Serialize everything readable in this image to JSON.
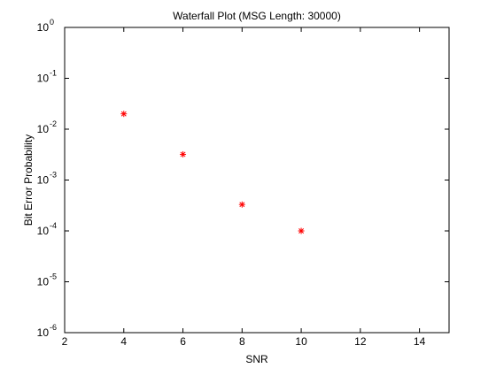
{
  "chart_data": {
    "type": "scatter",
    "title": "Waterfall Plot (MSG Length: 30000)",
    "xlabel": "SNR",
    "ylabel": "Bit Error Probability",
    "xlim": [
      2,
      15
    ],
    "ylim": [
      1e-06,
      1
    ],
    "yscale": "log",
    "grid": false,
    "x_ticks": [
      2,
      4,
      6,
      8,
      10,
      12,
      14
    ],
    "y_ticks": [
      {
        "value": 1e-06,
        "base": "10",
        "exp": "-6"
      },
      {
        "value": 1e-05,
        "base": "10",
        "exp": "-5"
      },
      {
        "value": 0.0001,
        "base": "10",
        "exp": "-4"
      },
      {
        "value": 0.001,
        "base": "10",
        "exp": "-3"
      },
      {
        "value": 0.01,
        "base": "10",
        "exp": "-2"
      },
      {
        "value": 0.1,
        "base": "10",
        "exp": "-1"
      },
      {
        "value": 1,
        "base": "10",
        "exp": "0"
      }
    ],
    "marker": "*",
    "marker_color": "#ff0000",
    "points": [
      {
        "x": 4,
        "y": 0.02
      },
      {
        "x": 6,
        "y": 0.0032
      },
      {
        "x": 8,
        "y": 0.00033
      },
      {
        "x": 10,
        "y": 0.0001
      }
    ]
  }
}
